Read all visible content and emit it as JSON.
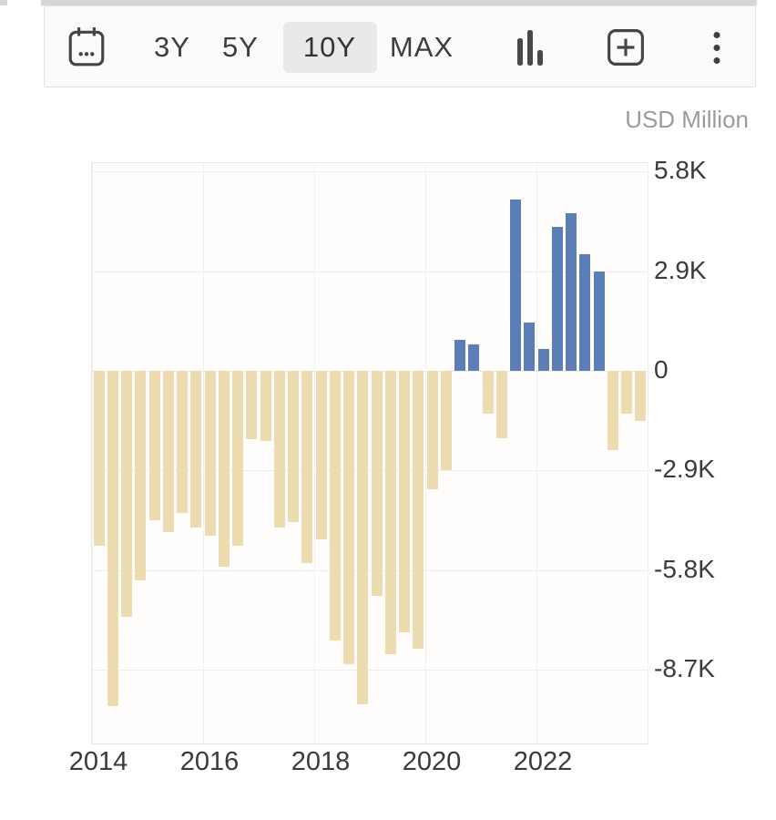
{
  "toolbar": {
    "range_buttons": [
      {
        "label": "3Y",
        "selected": false
      },
      {
        "label": "5Y",
        "selected": false
      },
      {
        "label": "10Y",
        "selected": true
      },
      {
        "label": "MAX",
        "selected": false
      }
    ],
    "selected_chip_color": "#e9e9e9",
    "icon_color": "#454545"
  },
  "chart": {
    "unit_label": "USD Million"
  },
  "chart_data": {
    "type": "bar",
    "title": "",
    "unit": "USD Million",
    "xlabel": "",
    "ylabel": "USD Million",
    "grid": true,
    "legend": null,
    "ylim": [
      -10850,
      6050
    ],
    "positive_color": "#5a7eb5",
    "negative_color": "#ecdcb0",
    "categories": [
      "2014 Q1",
      "2014 Q2",
      "2014 Q3",
      "2014 Q4",
      "2015 Q1",
      "2015 Q2",
      "2015 Q3",
      "2015 Q4",
      "2016 Q1",
      "2016 Q2",
      "2016 Q3",
      "2016 Q4",
      "2017 Q1",
      "2017 Q2",
      "2017 Q3",
      "2017 Q4",
      "2018 Q1",
      "2018 Q2",
      "2018 Q3",
      "2018 Q4",
      "2019 Q1",
      "2019 Q2",
      "2019 Q3",
      "2019 Q4",
      "2020 Q1",
      "2020 Q2",
      "2020 Q3",
      "2020 Q4",
      "2021 Q1",
      "2021 Q2",
      "2021 Q3",
      "2021 Q4",
      "2022 Q1",
      "2022 Q2",
      "2022 Q3",
      "2022 Q4",
      "2023 Q1",
      "2023 Q2",
      "2023 Q3",
      "2023 Q4"
    ],
    "values": [
      -5100,
      -9750,
      -7150,
      -6100,
      -4350,
      -4700,
      -4150,
      -4550,
      -4800,
      -5700,
      -5100,
      -2000,
      -2050,
      -4550,
      -4400,
      -5600,
      -4900,
      -7850,
      -8550,
      -9700,
      -6550,
      -8250,
      -7600,
      -8100,
      -3450,
      -2900,
      900,
      780,
      -1250,
      -1950,
      5000,
      1400,
      650,
      4200,
      4600,
      3400,
      2900,
      -2300,
      -1250,
      -1450
    ],
    "y_ticks": [
      {
        "label": "5.8K",
        "value": 5800
      },
      {
        "label": "2.9K",
        "value": 2900
      },
      {
        "label": "0",
        "value": 0
      },
      {
        "label": "-2.9K",
        "value": -2900
      },
      {
        "label": "-5.8K",
        "value": -5800
      },
      {
        "label": "-8.7K",
        "value": -8700
      }
    ],
    "x_ticks": [
      {
        "label": "2014",
        "bar_index": 0
      },
      {
        "label": "2016",
        "bar_index": 8
      },
      {
        "label": "2018",
        "bar_index": 16
      },
      {
        "label": "2020",
        "bar_index": 24
      },
      {
        "label": "2022",
        "bar_index": 32
      }
    ],
    "vgrid_bar_indexes": [
      0,
      8,
      16,
      24,
      32,
      40
    ]
  }
}
